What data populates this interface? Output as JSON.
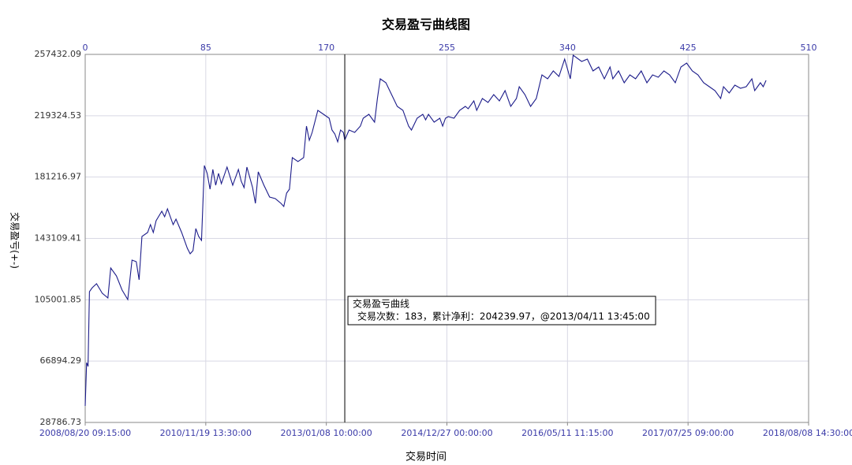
{
  "chart_data": {
    "type": "line",
    "title": "交易盈亏曲线图",
    "x_label": "交易时间",
    "y_label": "交易盈亏(+-)",
    "xlim": [
      0,
      510
    ],
    "xticks": [
      0,
      85,
      170,
      255,
      340,
      425,
      510
    ],
    "xticks_bottom": [
      {
        "value": 0,
        "label": "2008/08/20 09:15:00"
      },
      {
        "value": 85,
        "label": "2010/11/19 13:30:00"
      },
      {
        "value": 170,
        "label": "2013/01/08 10:00:00"
      },
      {
        "value": 255,
        "label": "2014/12/27 00:00:00"
      },
      {
        "value": 340,
        "label": "2016/05/11 11:15:00"
      },
      {
        "value": 425,
        "label": "2017/07/25 09:00:00"
      },
      {
        "value": 510,
        "label": "2018/08/08 14:30:00"
      }
    ],
    "ylim": [
      28786.73,
      257432.09
    ],
    "yticks": [
      28786.73,
      66894.29,
      105001.85,
      143109.41,
      181216.97,
      219324.53,
      257432.09
    ],
    "grid": true,
    "cursor": {
      "x": 183,
      "title": "交易盈亏曲线",
      "text": "交易次数：183，累计净利：204239.97，@2013/04/11 13:45:00"
    },
    "series": [
      {
        "color": "#1c1c8a",
        "x": [
          0,
          1,
          2,
          3,
          5,
          8,
          12,
          16,
          18,
          22,
          26,
          30,
          33,
          36,
          38,
          40,
          44,
          46,
          48,
          50,
          54,
          56,
          58,
          62,
          64,
          68,
          72,
          74,
          76,
          78,
          80,
          82,
          84,
          86,
          88,
          90,
          92,
          94,
          96,
          100,
          104,
          108,
          110,
          112,
          114,
          118,
          120,
          122,
          126,
          130,
          134,
          138,
          140,
          142,
          144,
          146,
          150,
          154,
          156,
          158,
          160,
          164,
          168,
          172,
          174,
          176,
          178,
          180,
          182,
          183,
          186,
          190,
          194,
          196,
          200,
          204,
          206,
          208,
          212,
          216,
          220,
          224,
          228,
          230,
          234,
          238,
          240,
          242,
          246,
          250,
          252,
          254,
          256,
          260,
          264,
          268,
          270,
          274,
          276,
          280,
          284,
          288,
          292,
          296,
          300,
          304,
          306,
          310,
          314,
          318,
          322,
          326,
          330,
          334,
          338,
          342,
          344,
          350,
          354,
          358,
          362,
          366,
          370,
          372,
          376,
          380,
          384,
          388,
          392,
          396,
          400,
          404,
          408,
          412,
          416,
          420,
          424,
          428,
          432,
          436,
          440,
          444,
          448,
          450,
          454,
          458,
          462,
          466,
          470,
          472,
          474,
          476,
          478,
          480
        ],
        "values": [
          39069,
          65997,
          63549,
          110061,
          112509,
          114957,
          109081,
          106144,
          124749,
          119853,
          111040,
          105165,
          129645,
          128665,
          117405,
          144333,
          146781,
          151677,
          146781,
          154125,
          160000,
          156573,
          161469,
          151677,
          155104,
          146781,
          136989,
          133561,
          135520,
          149229,
          144333,
          141885,
          188397,
          183501,
          173709,
          185949,
          176157,
          183501,
          177136,
          187417,
          176157,
          185949,
          178605,
          174688,
          187417,
          174688,
          164896,
          184480,
          176157,
          168813,
          167833,
          164896,
          162937,
          171261,
          173709,
          193293,
          190845,
          193293,
          212877,
          204064,
          208960,
          222669,
          220221,
          217773,
          210429,
          207981,
          203085,
          210429,
          208960,
          204239.97,
          210429,
          208960,
          212877,
          217773,
          220221,
          215325,
          230013,
          242253,
          239805,
          232461,
          225117,
          222669,
          212877,
          210429,
          217773,
          220221,
          216793,
          220221,
          215325,
          217773,
          212877,
          217773,
          218752,
          217773,
          222669,
          225117,
          223648,
          228544,
          222669,
          230013,
          227565,
          232461,
          228544,
          234909,
          225117,
          230013,
          237357,
          232461,
          225117,
          230013,
          244701,
          242253,
          247149,
          243721,
          254493,
          242253,
          256941,
          253024,
          254493,
          247149,
          249597,
          242253,
          249597,
          242253,
          247149,
          239805,
          244701,
          242253,
          247149,
          239805,
          244701,
          243232,
          247149,
          244701,
          239805,
          249597,
          252045,
          247149,
          244701,
          239805,
          237357,
          234909,
          230013,
          237357,
          233440,
          238336,
          236377,
          237357,
          242253,
          234909,
          237357,
          239805,
          237357,
          241273
        ]
      }
    ]
  }
}
